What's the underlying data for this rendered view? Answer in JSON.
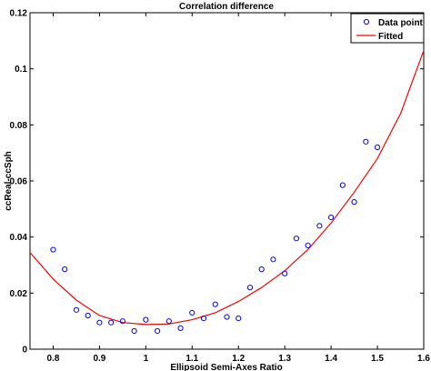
{
  "chart_data": {
    "type": "scatter",
    "title": "Correlation difference",
    "xlabel": "Ellipsoid Semi-Axes Ratio",
    "ylabel": "ccReal-ccSph",
    "xlim": [
      0.75,
      1.6
    ],
    "ylim": [
      0,
      0.12
    ],
    "x_ticks": [
      "0.8",
      "0.9",
      "1",
      "1.1",
      "1.2",
      "1.3",
      "1.4",
      "1.5",
      "1.6"
    ],
    "y_ticks": [
      "0",
      "0.02",
      "0.04",
      "0.06",
      "0.08",
      "0.1",
      "0.12"
    ],
    "grid": false,
    "legend_position": "top-right",
    "series": [
      {
        "name": "Data point",
        "kind": "scatter",
        "color": "#0000ff",
        "marker": "circle",
        "x": [
          0.8,
          0.825,
          0.85,
          0.875,
          0.9,
          0.925,
          0.95,
          0.975,
          1.0,
          1.025,
          1.05,
          1.075,
          1.1,
          1.125,
          1.15,
          1.175,
          1.2,
          1.225,
          1.25,
          1.275,
          1.3,
          1.325,
          1.35,
          1.375,
          1.4,
          1.425,
          1.45,
          1.475,
          1.5
        ],
        "y": [
          0.0355,
          0.0285,
          0.014,
          0.012,
          0.0095,
          0.0095,
          0.01,
          0.0065,
          0.0105,
          0.0065,
          0.01,
          0.0075,
          0.013,
          0.011,
          0.016,
          0.0115,
          0.011,
          0.022,
          0.0285,
          0.032,
          0.027,
          0.0395,
          0.037,
          0.044,
          0.047,
          0.0585,
          0.0525,
          0.074,
          0.072
        ]
      },
      {
        "name": "Fitted",
        "kind": "line",
        "color": "#ff0000",
        "x": [
          0.75,
          0.8,
          0.85,
          0.9,
          0.95,
          1.0,
          1.05,
          1.1,
          1.15,
          1.2,
          1.25,
          1.3,
          1.35,
          1.4,
          1.45,
          1.5,
          1.55,
          1.6
        ],
        "y": [
          0.0345,
          0.025,
          0.0175,
          0.012,
          0.0095,
          0.0088,
          0.009,
          0.0105,
          0.013,
          0.017,
          0.022,
          0.028,
          0.0355,
          0.045,
          0.056,
          0.068,
          0.084,
          0.1065
        ]
      }
    ]
  }
}
